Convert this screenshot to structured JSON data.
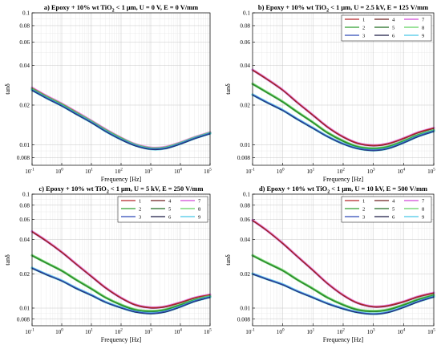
{
  "chart_data": [
    {
      "type": "line",
      "title": {
        "prefix": "a) Epoxy + 10% wt TiO",
        "subscript": "2",
        "suffix": " < 1 μm, U = 0 V, E = 0 V/mm"
      },
      "xlabel": "Frequency [Hz]",
      "ylabel": "tanδ",
      "xscale": "log",
      "yscale": "log",
      "xlim": [
        0.1,
        100000
      ],
      "ylim": [
        0.007,
        0.1
      ],
      "x_ticks": [
        {
          "base": "10",
          "exp": "-1"
        },
        {
          "base": "10",
          "exp": "0"
        },
        {
          "base": "10",
          "exp": "1"
        },
        {
          "base": "10",
          "exp": "2"
        },
        {
          "base": "10",
          "exp": "3"
        },
        {
          "base": "10",
          "exp": "4"
        },
        {
          "base": "10",
          "exp": "5"
        }
      ],
      "y_ticks": [
        "0.008",
        "0.01",
        "0.02",
        "0.04",
        "0.06",
        "0.08",
        "0.1"
      ],
      "grid": true,
      "legend": "none",
      "x": [
        0.1,
        0.3,
        1,
        3,
        10,
        30,
        100,
        300,
        1000,
        3000,
        10000,
        30000,
        100000
      ],
      "series": [
        {
          "values": [
            0.027,
            0.0235,
            0.0205,
            0.0178,
            0.0152,
            0.0131,
            0.0113,
            0.0101,
            0.0095,
            0.0096,
            0.0104,
            0.0114,
            0.0124
          ]
        },
        {
          "values": [
            0.0265,
            0.0231,
            0.0202,
            0.0175,
            0.015,
            0.0129,
            0.0112,
            0.01,
            0.0094,
            0.0095,
            0.0103,
            0.0113,
            0.0123
          ]
        },
        {
          "values": [
            0.026,
            0.0227,
            0.0198,
            0.0172,
            0.0148,
            0.0127,
            0.011,
            0.0099,
            0.0093,
            0.0094,
            0.0102,
            0.0112,
            0.0122
          ]
        }
      ]
    },
    {
      "type": "line",
      "title": {
        "prefix": "b) Epoxy + 10% wt TiO",
        "subscript": "2",
        "suffix": " < 1 μm, U = 2.5 kV, E = 125 V/mm"
      },
      "xlabel": "Frequency [Hz]",
      "ylabel": "tanδ",
      "xscale": "log",
      "yscale": "log",
      "xlim": [
        0.1,
        100000
      ],
      "ylim": [
        0.007,
        0.1
      ],
      "x_ticks": [
        {
          "base": "10",
          "exp": "-1"
        },
        {
          "base": "10",
          "exp": "0"
        },
        {
          "base": "10",
          "exp": "1"
        },
        {
          "base": "10",
          "exp": "2"
        },
        {
          "base": "10",
          "exp": "3"
        },
        {
          "base": "10",
          "exp": "4"
        },
        {
          "base": "10",
          "exp": "5"
        }
      ],
      "y_ticks": [
        "0.008",
        "0.01",
        "0.02",
        "0.04",
        "0.06",
        "0.08",
        "0.1"
      ],
      "grid": true,
      "legend": "top-right",
      "legend_labels": [
        "1",
        "2",
        "3",
        "4",
        "5",
        "6",
        "7",
        "8",
        "9"
      ],
      "x": [
        0.1,
        0.3,
        1,
        3,
        10,
        30,
        100,
        300,
        1000,
        3000,
        10000,
        30000,
        100000
      ],
      "series": [
        {
          "values": [
            0.037,
            0.0315,
            0.026,
            0.021,
            0.0168,
            0.0137,
            0.0115,
            0.0103,
            0.0099,
            0.0102,
            0.0112,
            0.0124,
            0.0134
          ]
        },
        {
          "values": [
            0.029,
            0.025,
            0.0212,
            0.0178,
            0.0148,
            0.0124,
            0.0107,
            0.0097,
            0.0094,
            0.0097,
            0.0107,
            0.0119,
            0.0129
          ]
        },
        {
          "values": [
            0.024,
            0.021,
            0.0183,
            0.0157,
            0.0134,
            0.0116,
            0.0102,
            0.0094,
            0.0091,
            0.0094,
            0.0104,
            0.0116,
            0.0127
          ]
        }
      ]
    },
    {
      "type": "line",
      "title": {
        "prefix": "c) Epoxy + 10% wt TiO",
        "subscript": "2",
        "suffix": " < 1 μm, U = 5 kV, E = 250 V/mm"
      },
      "xlabel": "Frequency [Hz]",
      "ylabel": "tanδ",
      "xscale": "log",
      "yscale": "log",
      "xlim": [
        0.1,
        100000
      ],
      "ylim": [
        0.007,
        0.1
      ],
      "x_ticks": [
        {
          "base": "10",
          "exp": "-1"
        },
        {
          "base": "10",
          "exp": "0"
        },
        {
          "base": "10",
          "exp": "1"
        },
        {
          "base": "10",
          "exp": "2"
        },
        {
          "base": "10",
          "exp": "3"
        },
        {
          "base": "10",
          "exp": "4"
        },
        {
          "base": "10",
          "exp": "5"
        }
      ],
      "y_ticks": [
        "0.008",
        "0.01",
        "0.02",
        "0.04",
        "0.06",
        "0.08",
        "0.1"
      ],
      "grid": true,
      "legend": "top-right",
      "legend_labels": [
        "1",
        "2",
        "3",
        "4",
        "5",
        "6",
        "7",
        "8",
        "9"
      ],
      "x": [
        0.1,
        0.3,
        1,
        3,
        10,
        30,
        100,
        300,
        1000,
        3000,
        10000,
        30000,
        100000
      ],
      "series": [
        {
          "values": [
            0.047,
            0.039,
            0.031,
            0.0245,
            0.019,
            0.0151,
            0.0123,
            0.0107,
            0.0101,
            0.0103,
            0.0112,
            0.0123,
            0.0131
          ]
        },
        {
          "values": [
            0.029,
            0.025,
            0.0213,
            0.0178,
            0.0148,
            0.0124,
            0.0107,
            0.0097,
            0.0094,
            0.0097,
            0.0107,
            0.0118,
            0.0127
          ]
        },
        {
          "values": [
            0.0225,
            0.0198,
            0.0174,
            0.015,
            0.013,
            0.0113,
            0.0101,
            0.0093,
            0.009,
            0.0093,
            0.0103,
            0.0115,
            0.0125
          ]
        }
      ]
    },
    {
      "type": "line",
      "title": {
        "prefix": "d) Epoxy + 10% wt TiO",
        "subscript": "2",
        "suffix": " < 1 μm, U = 10 kV, E = 500 V/mm"
      },
      "xlabel": "Frequency [Hz]",
      "ylabel": "tanδ",
      "xscale": "log",
      "yscale": "log",
      "xlim": [
        0.1,
        100000
      ],
      "ylim": [
        0.007,
        0.1
      ],
      "x_ticks": [
        {
          "base": "10",
          "exp": "-1"
        },
        {
          "base": "10",
          "exp": "0"
        },
        {
          "base": "10",
          "exp": "1"
        },
        {
          "base": "10",
          "exp": "2"
        },
        {
          "base": "10",
          "exp": "3"
        },
        {
          "base": "10",
          "exp": "4"
        },
        {
          "base": "10",
          "exp": "5"
        }
      ],
      "y_ticks": [
        "0.008",
        "0.01",
        "0.02",
        "0.04",
        "0.06",
        "0.08",
        "0.1"
      ],
      "grid": true,
      "legend": "top-right",
      "legend_labels": [
        "1",
        "2",
        "3",
        "4",
        "5",
        "6",
        "7",
        "8",
        "9"
      ],
      "x": [
        0.1,
        0.3,
        1,
        3,
        10,
        30,
        100,
        300,
        1000,
        3000,
        10000,
        30000,
        100000
      ],
      "series": [
        {
          "values": [
            0.059,
            0.048,
            0.037,
            0.0285,
            0.0215,
            0.0165,
            0.013,
            0.0111,
            0.0103,
            0.0105,
            0.0114,
            0.0126,
            0.0136
          ]
        },
        {
          "values": [
            0.029,
            0.025,
            0.0214,
            0.0178,
            0.0148,
            0.0124,
            0.0107,
            0.0097,
            0.0094,
            0.0097,
            0.0107,
            0.0119,
            0.013
          ]
        },
        {
          "values": [
            0.02,
            0.018,
            0.0161,
            0.0141,
            0.0124,
            0.011,
            0.0099,
            0.0092,
            0.0089,
            0.0092,
            0.0102,
            0.0114,
            0.0126
          ]
        }
      ]
    }
  ],
  "legend_colors": [
    "#b5262b",
    "#2e9e2e",
    "#2f49b8",
    "#6e2020",
    "#1f6b1f",
    "#1a1a44",
    "#d14ad6",
    "#62d05f",
    "#47c8e6"
  ],
  "band_colors": [
    [
      "#b5262b",
      "#6e2020",
      "#e068e6"
    ],
    [
      "#2e9e2e",
      "#1f6b1f",
      "#6ad467"
    ],
    [
      "#2f49b8",
      "#1a1a44",
      "#47c8e6"
    ]
  ]
}
